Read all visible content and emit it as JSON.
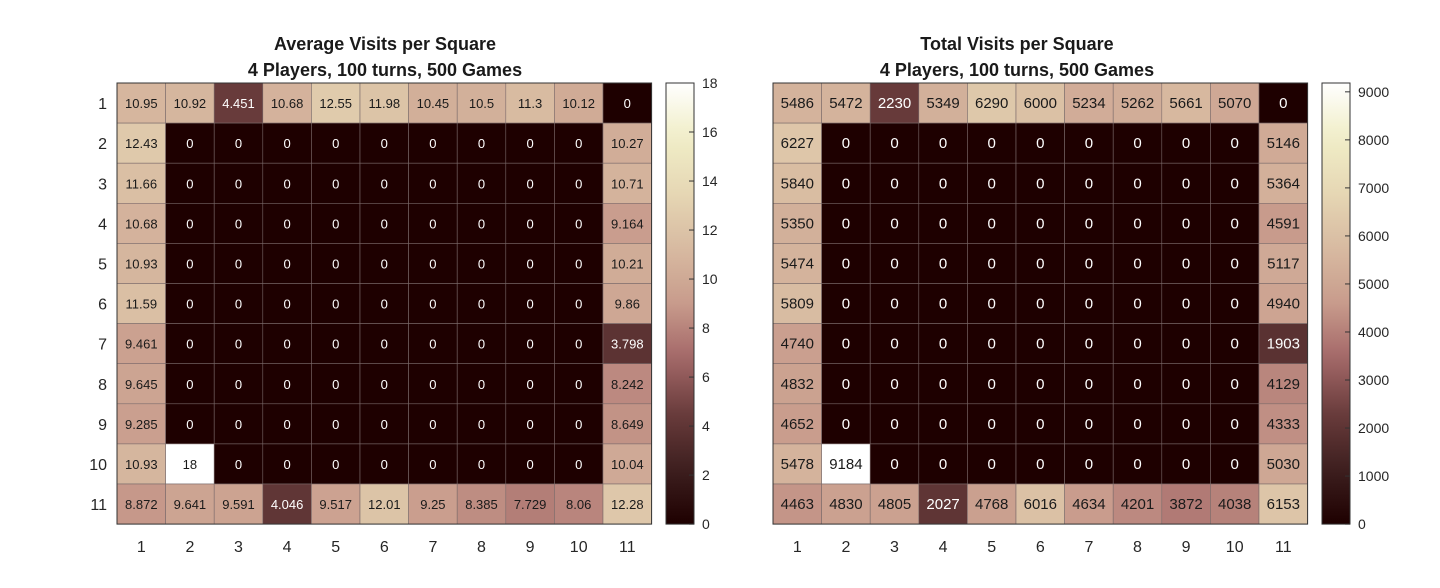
{
  "chart_data": [
    {
      "type": "heatmap",
      "title": "Average Visits per Square",
      "subtitle": "4 Players, 100 turns, 500 Games",
      "xlabel": "",
      "ylabel": "",
      "x_ticks": [
        "1",
        "2",
        "3",
        "4",
        "5",
        "6",
        "7",
        "8",
        "9",
        "10",
        "11"
      ],
      "y_ticks": [
        "1",
        "2",
        "3",
        "4",
        "5",
        "6",
        "7",
        "8",
        "9",
        "10",
        "11"
      ],
      "values": [
        [
          "10.95",
          "10.92",
          "4.451",
          "10.68",
          "12.55",
          "11.98",
          "10.45",
          "10.5",
          "11.3",
          "10.12",
          "0"
        ],
        [
          "12.43",
          "0",
          "0",
          "0",
          "0",
          "0",
          "0",
          "0",
          "0",
          "0",
          "10.27"
        ],
        [
          "11.66",
          "0",
          "0",
          "0",
          "0",
          "0",
          "0",
          "0",
          "0",
          "0",
          "10.71"
        ],
        [
          "10.68",
          "0",
          "0",
          "0",
          "0",
          "0",
          "0",
          "0",
          "0",
          "0",
          "9.164"
        ],
        [
          "10.93",
          "0",
          "0",
          "0",
          "0",
          "0",
          "0",
          "0",
          "0",
          "0",
          "10.21"
        ],
        [
          "11.59",
          "0",
          "0",
          "0",
          "0",
          "0",
          "0",
          "0",
          "0",
          "0",
          "9.86"
        ],
        [
          "9.461",
          "0",
          "0",
          "0",
          "0",
          "0",
          "0",
          "0",
          "0",
          "0",
          "3.798"
        ],
        [
          "9.645",
          "0",
          "0",
          "0",
          "0",
          "0",
          "0",
          "0",
          "0",
          "0",
          "8.242"
        ],
        [
          "9.285",
          "0",
          "0",
          "0",
          "0",
          "0",
          "0",
          "0",
          "0",
          "0",
          "8.649"
        ],
        [
          "10.93",
          "18",
          "0",
          "0",
          "0",
          "0",
          "0",
          "0",
          "0",
          "0",
          "10.04"
        ],
        [
          "8.872",
          "9.641",
          "9.591",
          "4.046",
          "9.517",
          "12.01",
          "9.25",
          "8.385",
          "7.729",
          "8.06",
          "12.28"
        ]
      ],
      "colorbar": {
        "min": 0,
        "max": 18,
        "ticks": [
          "0",
          "2",
          "4",
          "6",
          "8",
          "10",
          "12",
          "14",
          "16",
          "18"
        ]
      },
      "colormap": "pink",
      "grid": true
    },
    {
      "type": "heatmap",
      "title": "Total Visits per Square",
      "subtitle": "4 Players, 100 turns, 500 Games",
      "xlabel": "",
      "ylabel": "",
      "x_ticks": [
        "1",
        "2",
        "3",
        "4",
        "5",
        "6",
        "7",
        "8",
        "9",
        "10",
        "11"
      ],
      "y_ticks": [],
      "values": [
        [
          "5486",
          "5472",
          "2230",
          "5349",
          "6290",
          "6000",
          "5234",
          "5262",
          "5661",
          "5070",
          "0"
        ],
        [
          "6227",
          "0",
          "0",
          "0",
          "0",
          "0",
          "0",
          "0",
          "0",
          "0",
          "5146"
        ],
        [
          "5840",
          "0",
          "0",
          "0",
          "0",
          "0",
          "0",
          "0",
          "0",
          "0",
          "5364"
        ],
        [
          "5350",
          "0",
          "0",
          "0",
          "0",
          "0",
          "0",
          "0",
          "0",
          "0",
          "4591"
        ],
        [
          "5474",
          "0",
          "0",
          "0",
          "0",
          "0",
          "0",
          "0",
          "0",
          "0",
          "5117"
        ],
        [
          "5809",
          "0",
          "0",
          "0",
          "0",
          "0",
          "0",
          "0",
          "0",
          "0",
          "4940"
        ],
        [
          "4740",
          "0",
          "0",
          "0",
          "0",
          "0",
          "0",
          "0",
          "0",
          "0",
          "1903"
        ],
        [
          "4832",
          "0",
          "0",
          "0",
          "0",
          "0",
          "0",
          "0",
          "0",
          "0",
          "4129"
        ],
        [
          "4652",
          "0",
          "0",
          "0",
          "0",
          "0",
          "0",
          "0",
          "0",
          "0",
          "4333"
        ],
        [
          "5478",
          "9184",
          "0",
          "0",
          "0",
          "0",
          "0",
          "0",
          "0",
          "0",
          "5030"
        ],
        [
          "4463",
          "4830",
          "4805",
          "2027",
          "4768",
          "6016",
          "4634",
          "4201",
          "3872",
          "4038",
          "6153"
        ]
      ],
      "colorbar": {
        "min": 0,
        "max": 9184,
        "ticks": [
          "0",
          "1000",
          "2000",
          "3000",
          "4000",
          "5000",
          "6000",
          "7000",
          "8000",
          "9000"
        ]
      },
      "colormap": "pink",
      "grid": true
    }
  ]
}
